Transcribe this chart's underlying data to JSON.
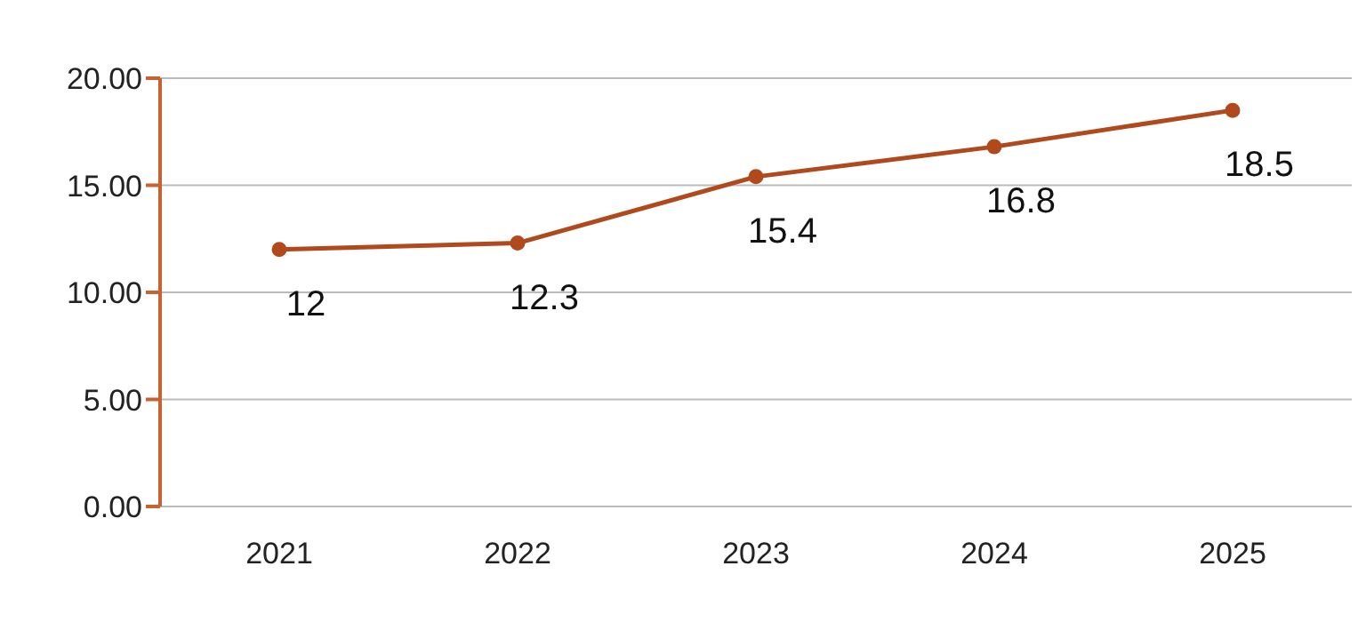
{
  "chart_data": {
    "type": "line",
    "categories": [
      "2021",
      "2022",
      "2023",
      "2024",
      "2025"
    ],
    "series": [
      {
        "color": "#b04a1c",
        "values": [
          12,
          12.3,
          15.4,
          16.8,
          18.5
        ]
      }
    ],
    "ylim": [
      0,
      20
    ],
    "yticks": [
      {
        "value": 0,
        "label": "0.00"
      },
      {
        "value": 5,
        "label": "5.00"
      },
      {
        "value": 10,
        "label": "10.00"
      },
      {
        "value": 15,
        "label": "15.00"
      },
      {
        "value": 20,
        "label": "20.00"
      }
    ],
    "grid": "y",
    "marker": "circle",
    "line_style": "solid",
    "data_labels": true
  }
}
